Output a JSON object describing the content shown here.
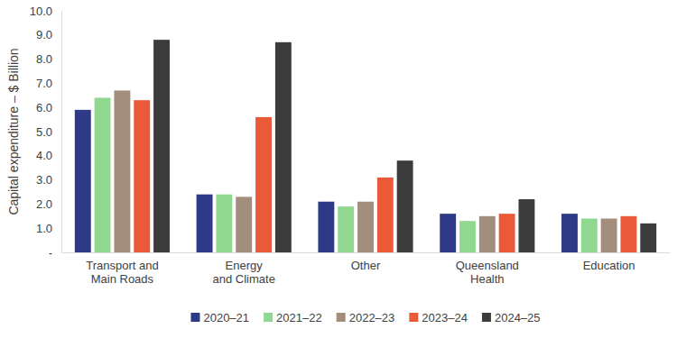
{
  "chart_data": {
    "type": "bar",
    "y_label": "Capital expenditure – $ Billion",
    "categories": [
      "Transport and\nMain Roads",
      "Energy\nand Climate",
      "Other",
      "Queensland\nHealth",
      "Education"
    ],
    "series": [
      {
        "name": "2020–21",
        "color": "#2e3a87",
        "values": [
          5.9,
          2.4,
          2.1,
          1.6,
          1.6
        ]
      },
      {
        "name": "2021–22",
        "color": "#90d890",
        "values": [
          6.4,
          2.4,
          1.9,
          1.3,
          1.4
        ]
      },
      {
        "name": "2022–23",
        "color": "#a38d7c",
        "values": [
          6.7,
          2.3,
          2.1,
          1.5,
          1.4
        ]
      },
      {
        "name": "2023–24",
        "color": "#ea5a39",
        "values": [
          6.3,
          5.6,
          3.1,
          1.6,
          1.5
        ]
      },
      {
        "name": "2024–25",
        "color": "#3c3c3c",
        "values": [
          8.8,
          8.7,
          3.8,
          2.2,
          1.2
        ]
      }
    ],
    "ylim": [
      0,
      10
    ],
    "yticks": [
      {
        "value": 0,
        "label": "-"
      },
      {
        "value": 1,
        "label": "1.0"
      },
      {
        "value": 2,
        "label": "2.0"
      },
      {
        "value": 3,
        "label": "3.0"
      },
      {
        "value": 4,
        "label": "4.0"
      },
      {
        "value": 5,
        "label": "5.0"
      },
      {
        "value": 6,
        "label": "6.0"
      },
      {
        "value": 7,
        "label": "7.0"
      },
      {
        "value": 8,
        "label": "8.0"
      },
      {
        "value": 9,
        "label": "9.0"
      },
      {
        "value": 10,
        "label": "10.0"
      }
    ],
    "grid": false,
    "legend": "bottom"
  }
}
